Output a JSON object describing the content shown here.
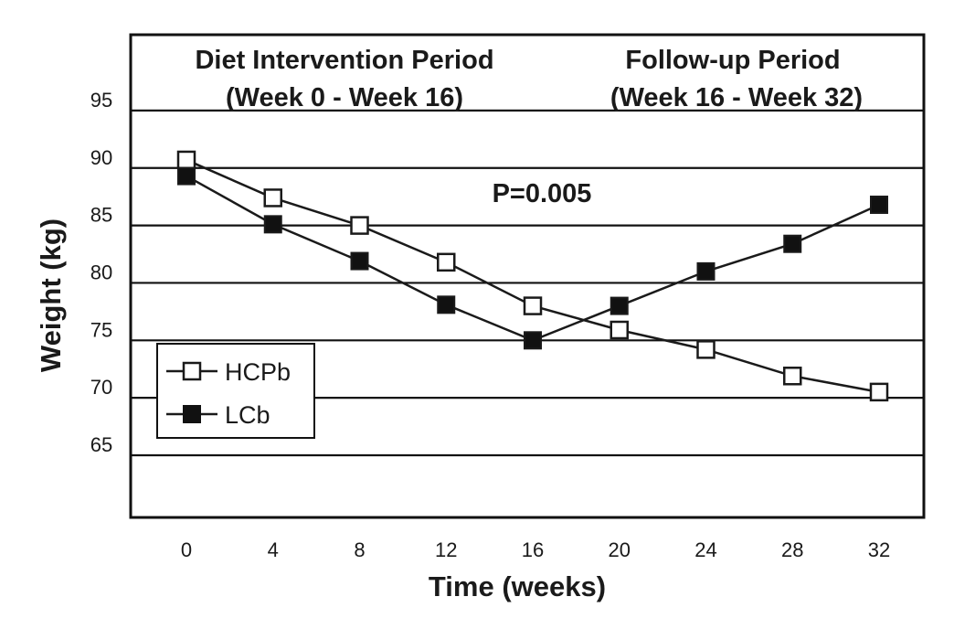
{
  "chart_data": {
    "type": "line",
    "xlabel": "Time  (weeks)",
    "ylabel": "Weight (kg)",
    "x": [
      0,
      4,
      8,
      12,
      16,
      20,
      24,
      28,
      32
    ],
    "x_ticks": [
      "0",
      "4",
      "8",
      "12",
      "16",
      "20",
      "24",
      "28",
      "32"
    ],
    "y_ticks": [
      "65",
      "70",
      "75",
      "80",
      "85",
      "90",
      "95"
    ],
    "ylim": [
      60,
      100
    ],
    "grid": "horizontal",
    "legend_position": "lower-left",
    "annotations": {
      "period1_title": "Diet Intervention Period",
      "period1_range": "(Week 0 - Week 16)",
      "period2_title": "Follow-up Period",
      "period2_range": "(Week 16 - Week 32)",
      "pvalue": "P=0.005"
    },
    "series": [
      {
        "name": "HCPb",
        "marker": "open-square",
        "values": [
          90.7,
          87.4,
          85.0,
          81.8,
          78.0,
          75.9,
          74.2,
          71.9,
          70.5
        ]
      },
      {
        "name": "LCb",
        "marker": "filled-square",
        "values": [
          89.3,
          85.1,
          81.9,
          78.1,
          75.0,
          78.0,
          81.0,
          83.4,
          86.8
        ]
      }
    ],
    "colors": {
      "line": "#1a1a1a",
      "open_fill": "#ffffff",
      "filled": "#111111"
    }
  }
}
